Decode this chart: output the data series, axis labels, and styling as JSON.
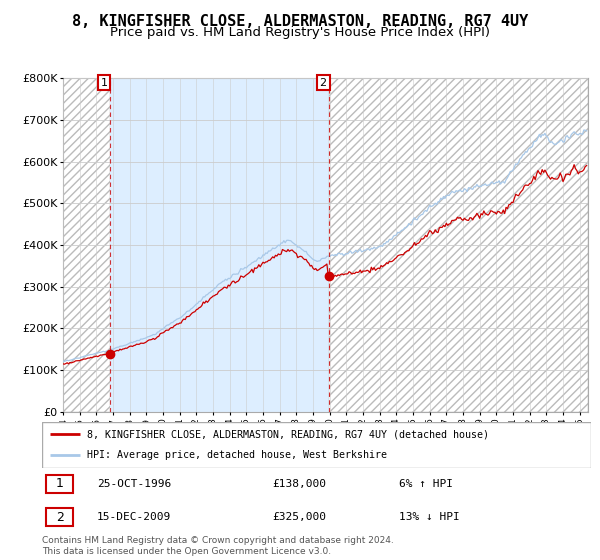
{
  "title": "8, KINGFISHER CLOSE, ALDERMASTON, READING, RG7 4UY",
  "subtitle": "Price paid vs. HM Land Registry's House Price Index (HPI)",
  "ylim": [
    0,
    800000
  ],
  "yticks": [
    0,
    100000,
    200000,
    300000,
    400000,
    500000,
    600000,
    700000,
    800000
  ],
  "ytick_labels": [
    "£0",
    "£100K",
    "£200K",
    "£300K",
    "£400K",
    "£500K",
    "£600K",
    "£700K",
    "£800K"
  ],
  "xmin": 1994.0,
  "xmax": 2025.5,
  "sale1_year": 1996.82,
  "sale1_price": 138000,
  "sale2_year": 2009.96,
  "sale2_price": 325000,
  "legend_line1": "8, KINGFISHER CLOSE, ALDERMASTON, READING, RG7 4UY (detached house)",
  "legend_line2": "HPI: Average price, detached house, West Berkshire",
  "table_row1_num": "1",
  "table_row1_date": "25-OCT-1996",
  "table_row1_price": "£138,000",
  "table_row1_hpi": "6% ↑ HPI",
  "table_row2_num": "2",
  "table_row2_date": "15-DEC-2009",
  "table_row2_price": "£325,000",
  "table_row2_hpi": "13% ↓ HPI",
  "footer": "Contains HM Land Registry data © Crown copyright and database right 2024.\nThis data is licensed under the Open Government Licence v3.0.",
  "hpi_color": "#a8c8e8",
  "price_color": "#cc0000",
  "shade_color": "#ddeeff",
  "grid_color": "#cccccc",
  "hatch_color": "#bbbbbb",
  "title_fontsize": 11,
  "subtitle_fontsize": 9.5,
  "tick_fontsize": 8,
  "label_fontsize": 7.5
}
